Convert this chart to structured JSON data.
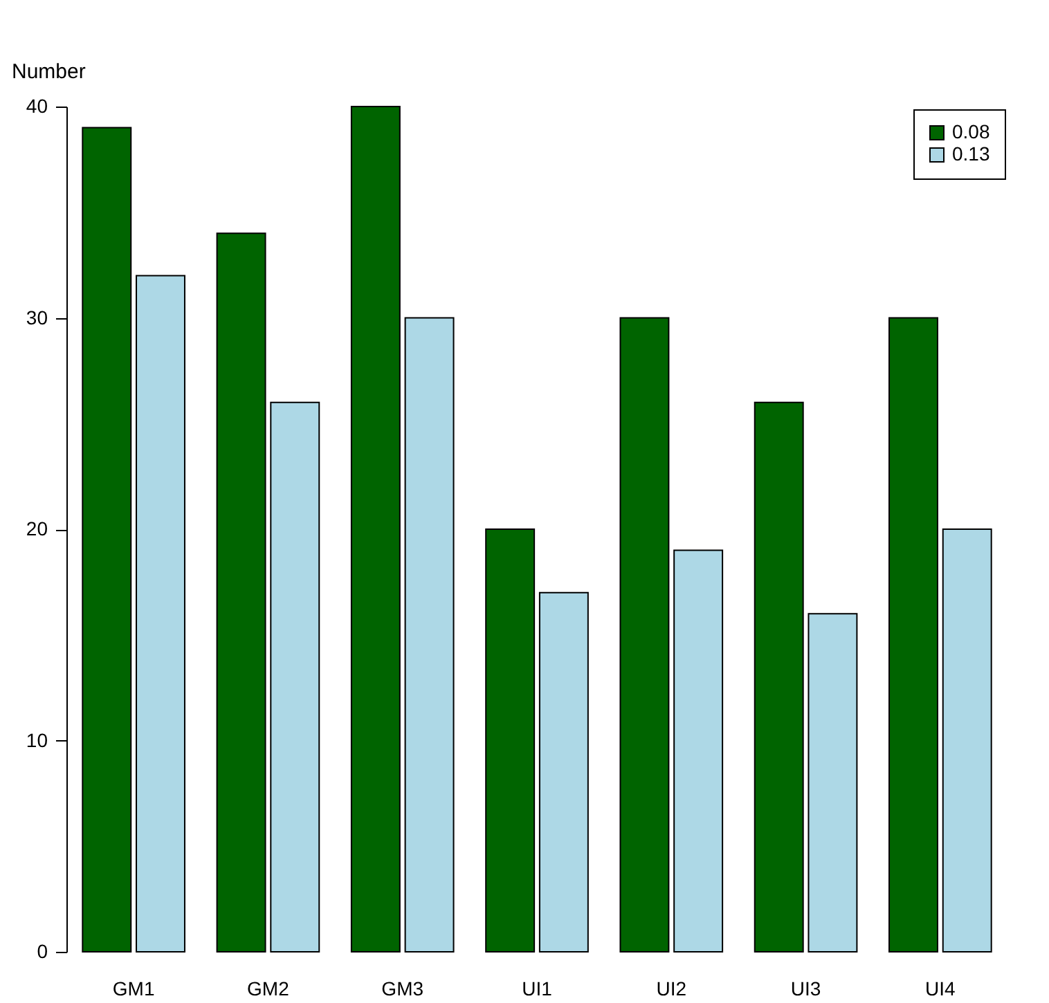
{
  "chart_data": {
    "type": "bar",
    "ylabel": "Number",
    "categories": [
      "GM1",
      "GM2",
      "GM3",
      "UI1",
      "UI2",
      "UI3",
      "UI4"
    ],
    "series": [
      {
        "name": "0.08",
        "color": "#006400",
        "values": [
          39,
          34,
          40,
          20,
          30,
          26,
          30
        ]
      },
      {
        "name": "0.13",
        "color": "#add8e6",
        "values": [
          32,
          26,
          30,
          17,
          19,
          16,
          20
        ]
      }
    ],
    "ylim": [
      0,
      40
    ],
    "yticks": [
      0,
      10,
      20,
      30,
      40
    ],
    "grid": false,
    "legend": "top right"
  }
}
